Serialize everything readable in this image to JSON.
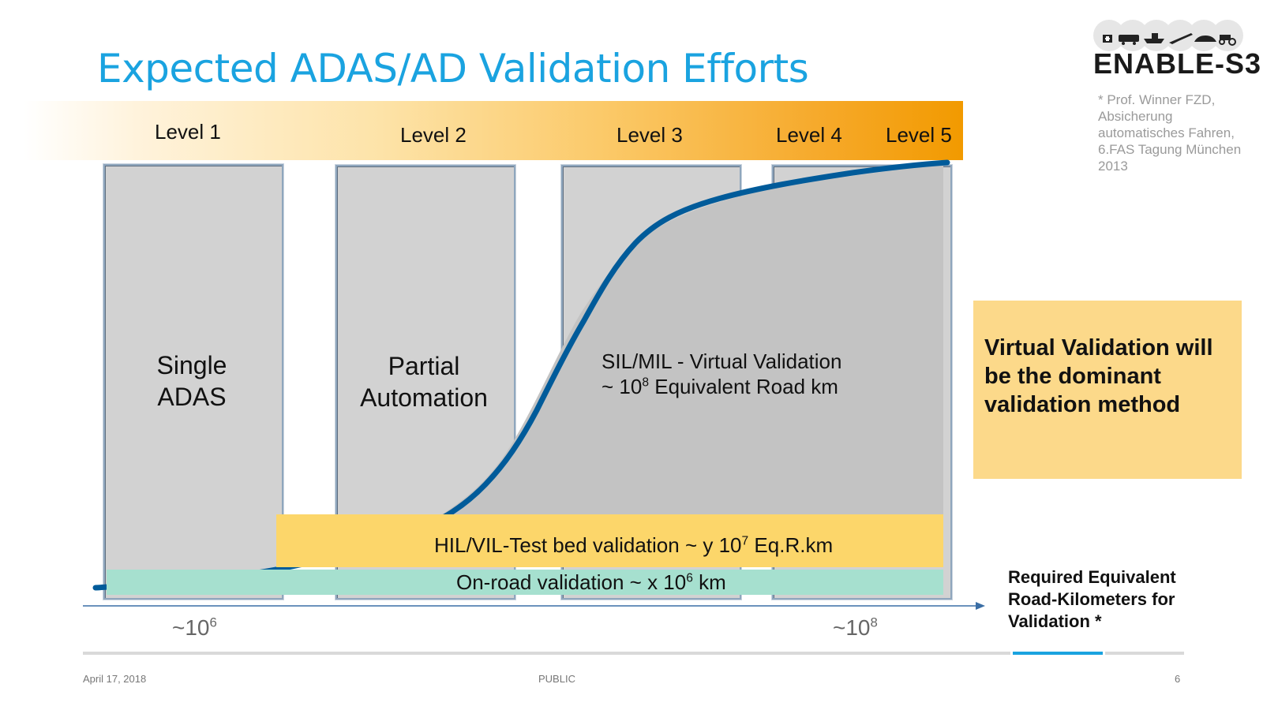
{
  "title": "Expected ADAS/AD Validation Efforts",
  "levels": [
    "Level 1",
    "Level 2",
    "Level 3",
    "Level 4",
    "Level 5"
  ],
  "columns": {
    "single_adas": [
      "Single",
      "ADAS"
    ],
    "partial_automation": [
      "Partial",
      "Automation"
    ]
  },
  "virtual_validation": {
    "line1": "SIL/MIL - Virtual Validation",
    "line2_prefix": "~ 10",
    "line2_exp": "8",
    "line2_suffix": " Equivalent Road km"
  },
  "hil_band": {
    "prefix": "HIL/VIL-Test bed validation ~ y 10",
    "exp": "7",
    "suffix": " Eq.R.km"
  },
  "onroad_band": {
    "prefix": "On-road validation ~ x 10",
    "exp": "6",
    "suffix": " km"
  },
  "axis": {
    "tick_left": {
      "base": "~10",
      "exp": "6"
    },
    "tick_right": {
      "base": "~10",
      "exp": "8"
    },
    "title_lines": [
      "Required Equivalent",
      "Road-Kilometers for",
      "Validation *"
    ]
  },
  "callout": [
    "Virtual Validation will",
    "be the dominant",
    "validation method"
  ],
  "footnote": [
    "* Prof. Winner FZD,",
    "Absicherung",
    "automatisches Fahren,",
    "6.FAS Tagung München",
    "2013"
  ],
  "footer": {
    "date": "April 17, 2018",
    "classification": "PUBLIC",
    "page": "6"
  },
  "logo": {
    "text": "ENABLE-S3",
    "icons": [
      "medical-icon",
      "train-icon",
      "ship-icon",
      "plane-icon",
      "car-icon",
      "tractor-icon"
    ]
  },
  "colors": {
    "title": "#1aa3e0",
    "curve": "#005b9a",
    "hil_band": "#fcd66a",
    "onroad_band": "#a6e0cf",
    "callout": "#fcd98a",
    "level_band_end": "#f29a00"
  }
}
